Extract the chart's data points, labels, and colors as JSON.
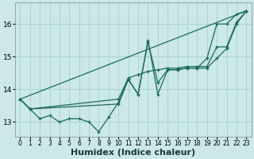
{
  "bg_color": "#cce8e8",
  "grid_color": "#aad4d4",
  "line_color": "#1a6b5a",
  "xlabel": "Humidex (Indice chaleur)",
  "xlim": [
    -0.5,
    23.5
  ],
  "ylim": [
    12.55,
    16.65
  ],
  "yticks": [
    13,
    14,
    15,
    16
  ],
  "xticks": [
    0,
    1,
    2,
    3,
    4,
    5,
    6,
    7,
    8,
    9,
    10,
    11,
    12,
    13,
    14,
    15,
    16,
    17,
    18,
    19,
    20,
    21,
    22,
    23
  ],
  "series_straight": {
    "x": [
      0,
      23
    ],
    "y": [
      13.7,
      16.4
    ]
  },
  "series_zigzag": {
    "x": [
      0,
      1,
      2,
      3,
      4,
      5,
      6,
      7,
      8,
      9,
      10,
      11,
      12,
      13,
      14,
      15,
      16,
      17,
      18,
      19,
      20,
      21,
      22,
      23
    ],
    "y": [
      13.7,
      13.4,
      13.1,
      13.2,
      13.0,
      13.1,
      13.1,
      13.0,
      12.7,
      13.15,
      13.6,
      14.3,
      13.85,
      15.5,
      13.85,
      14.6,
      14.6,
      14.65,
      14.65,
      14.95,
      16.0,
      16.0,
      16.3,
      16.4
    ]
  },
  "series_upper": {
    "x": [
      0,
      1,
      10,
      11,
      12,
      13,
      14,
      15,
      16,
      17,
      18,
      19,
      20,
      21,
      22,
      23
    ],
    "y": [
      13.7,
      13.4,
      13.7,
      14.35,
      14.45,
      14.55,
      14.6,
      14.65,
      14.65,
      14.7,
      14.7,
      14.7,
      15.3,
      15.3,
      16.05,
      16.4
    ]
  },
  "series_lower": {
    "x": [
      0,
      1,
      10,
      11,
      12,
      13,
      14,
      15,
      16,
      17,
      18,
      19,
      20,
      21,
      22,
      23
    ],
    "y": [
      13.7,
      13.4,
      13.55,
      14.3,
      13.85,
      15.45,
      14.2,
      14.6,
      14.6,
      14.65,
      14.65,
      14.65,
      14.95,
      15.25,
      16.0,
      16.4
    ]
  }
}
